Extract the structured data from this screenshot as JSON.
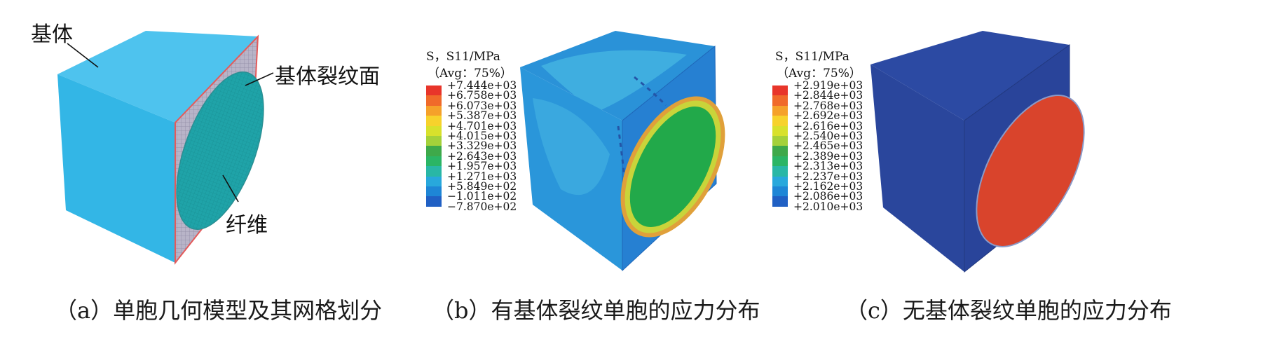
{
  "panel_a": {
    "caption": "（a）单胞几何模型及其网格划分",
    "label_matrix": "基体",
    "label_crack_face": "基体裂纹面",
    "label_fiber": "纤维"
  },
  "panel_b": {
    "caption": "（b）有基体裂纹单胞的应力分布",
    "legend_title_1": "S，S11/MPa",
    "legend_title_2": "（Avg：75%）",
    "legend_values": [
      "+7.444e+03",
      "+6.758e+03",
      "+6.073e+03",
      "+5.387e+03",
      "+4.701e+03",
      "+4.015e+03",
      "+3.329e+03",
      "+2.643e+03",
      "+1.957e+03",
      "+1.271e+03",
      "+5.849e+02",
      "−1.011e+02",
      "−7.870e+02"
    ]
  },
  "panel_c": {
    "caption": "（c）无基体裂纹单胞的应力分布",
    "legend_title_1": "S，S11/MPa",
    "legend_title_2": "（Avg：75%）",
    "legend_values": [
      "+2.919e+03",
      "+2.844e+03",
      "+2.768e+03",
      "+2.692e+03",
      "+2.616e+03",
      "+2.540e+03",
      "+2.465e+03",
      "+2.389e+03",
      "+2.313e+03",
      "+2.237e+03",
      "+2.162e+03",
      "+2.086e+03",
      "+2.010e+03"
    ]
  },
  "legend_colors": [
    "#e8352a",
    "#f06a2a",
    "#f5a12a",
    "#f7d22c",
    "#d8e12c",
    "#a4d13a",
    "#3ea94a",
    "#2bb565",
    "#29b7a6",
    "#28a8dc",
    "#1e86d6",
    "#2060c4",
    "#233e9a"
  ],
  "colors": {
    "matrix_a": "#33b6e6",
    "matrix_b_dark": "#1e7fd0",
    "matrix_b_light": "#35a7e0",
    "fiber_b": "#22a94a",
    "matrix_c": "#29479e",
    "fiber_c": "#d9442c"
  }
}
